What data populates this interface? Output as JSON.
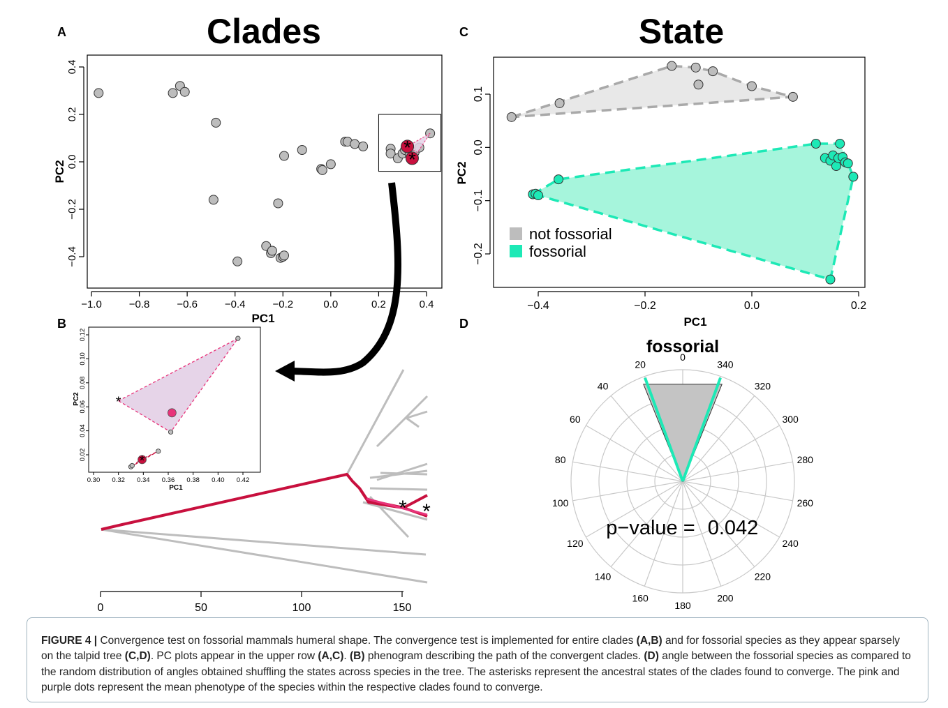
{
  "panelA": {
    "letter": "A",
    "title": "Clades",
    "xlabel": "PC1",
    "ylabel": "PC2",
    "xticks": [
      "−1.0",
      "−0.8",
      "−0.6",
      "−0.4",
      "−0.2",
      "0.0",
      "0.2",
      "0.4"
    ],
    "yticks": [
      "−0.4",
      "−0.2",
      "0.0",
      "0.2",
      "0.4"
    ]
  },
  "panelB": {
    "letter": "B",
    "xlabel": "PC1",
    "ylabel": "PC2",
    "xticks": [
      "0.30",
      "0.32",
      "0.34",
      "0.36",
      "0.38",
      "0.40",
      "0.42"
    ],
    "yticks": [
      "0.02",
      "0.04",
      "0.06",
      "0.08",
      "0.10",
      "0.12"
    ],
    "axis_ticks": [
      "0",
      "50",
      "100",
      "150"
    ]
  },
  "panelC": {
    "letter": "C",
    "title": "State",
    "xlabel": "PC1",
    "ylabel": "PC2",
    "xticks": [
      "−0.4",
      "−0.2",
      "0.0",
      "0.2"
    ],
    "yticks": [
      "−0.2",
      "−0.1",
      "0.0",
      "0.1"
    ],
    "legend": [
      {
        "label": "not fossorial",
        "color": "#bdbdbd"
      },
      {
        "label": "fossorial",
        "color": "#1de9b6"
      }
    ]
  },
  "panelD": {
    "letter": "D",
    "title": "fossorial",
    "angle_labels": [
      "0",
      "20",
      "40",
      "60",
      "80",
      "100",
      "120",
      "140",
      "160",
      "180",
      "200",
      "220",
      "240",
      "260",
      "280",
      "300",
      "320",
      "340"
    ],
    "pvalue_label": "p−value =",
    "pvalue": "0.042"
  },
  "caption": {
    "figure_label": "FIGURE 4 |",
    "t1": " Convergence test on fossorial mammals humeral shape. The convergence test is implemented for entire clades ",
    "b1": "(A,B)",
    "t2": " and for fossorial species as they appear sparsely on the talpid tree ",
    "b2": "(C,D)",
    "t3": ". PC plots appear in the upper row ",
    "b3": "(A,C)",
    "t4": ". ",
    "b4": "(B)",
    "t5": " phenogram describing the path of the convergent clades. ",
    "b5": "(D)",
    "t6": " angle between the fossorial species as compared to the random distribution of angles obtained shuffling the states across species in the tree. The asterisks represent the ancestral states of the clades found to converge. The pink and purple dots represent the mean phenotype of the species within the respective clades found to converge."
  },
  "colors": {
    "grey_point": "#bdbdbd",
    "fossorial": "#1de9b6",
    "fossorial_fill": "#a6f5dc",
    "clade_red": "#c8103e",
    "clade_pink": "#e8337a",
    "hull_purple": "#e6d4e8",
    "tree_grey": "#bdbdbd"
  },
  "chart_data": [
    {
      "type": "scatter",
      "panel": "A",
      "title": "Clades",
      "xlabel": "PC1",
      "ylabel": "PC2",
      "xlim": [
        -1.05,
        0.47
      ],
      "ylim": [
        -0.55,
        0.45
      ],
      "points": [
        {
          "x": -0.97,
          "y": 0.29
        },
        {
          "x": -0.66,
          "y": 0.29
        },
        {
          "x": -0.63,
          "y": 0.32
        },
        {
          "x": -0.61,
          "y": 0.295
        },
        {
          "x": -0.48,
          "y": 0.165
        },
        {
          "x": -0.49,
          "y": -0.16
        },
        {
          "x": -0.39,
          "y": -0.42
        },
        {
          "x": -0.27,
          "y": -0.355
        },
        {
          "x": -0.25,
          "y": -0.385
        },
        {
          "x": -0.245,
          "y": -0.375
        },
        {
          "x": -0.21,
          "y": -0.405
        },
        {
          "x": -0.2,
          "y": -0.4
        },
        {
          "x": -0.195,
          "y": -0.395
        },
        {
          "x": -0.22,
          "y": -0.175
        },
        {
          "x": -0.195,
          "y": 0.025
        },
        {
          "x": -0.12,
          "y": 0.05
        },
        {
          "x": -0.04,
          "y": -0.03
        },
        {
          "x": -0.035,
          "y": -0.035
        },
        {
          "x": 0.0,
          "y": -0.01
        },
        {
          "x": 0.06,
          "y": 0.085
        },
        {
          "x": 0.07,
          "y": 0.085
        },
        {
          "x": 0.1,
          "y": 0.075
        },
        {
          "x": 0.135,
          "y": 0.065
        },
        {
          "x": 0.25,
          "y": 0.055
        },
        {
          "x": 0.25,
          "y": 0.035
        },
        {
          "x": 0.28,
          "y": 0.015
        },
        {
          "x": 0.3,
          "y": 0.035
        },
        {
          "x": 0.31,
          "y": 0.05
        },
        {
          "x": 0.33,
          "y": 0.03
        },
        {
          "x": 0.35,
          "y": 0.04
        },
        {
          "x": 0.37,
          "y": 0.06
        },
        {
          "x": 0.415,
          "y": 0.12
        }
      ],
      "asterisks": [
        {
          "x": 0.32,
          "y": 0.065
        },
        {
          "x": 0.34,
          "y": 0.015
        }
      ],
      "inset_box": {
        "x0": 0.2,
        "x1": 0.46,
        "y0": -0.04,
        "y1": 0.2
      }
    },
    {
      "type": "scatter",
      "panel": "B-inset",
      "xlabel": "PC1",
      "ylabel": "PC2",
      "xlim": [
        0.3,
        0.43
      ],
      "ylim": [
        0.005,
        0.125
      ],
      "hull_purple": [
        {
          "x": 0.32,
          "y": 0.065
        },
        {
          "x": 0.416,
          "y": 0.117
        },
        {
          "x": 0.362,
          "y": 0.039
        }
      ],
      "hull_red": [
        {
          "x": 0.33,
          "y": 0.01
        },
        {
          "x": 0.352,
          "y": 0.023
        },
        {
          "x": 0.338,
          "y": 0.016
        }
      ],
      "mean_points": [
        {
          "x": 0.363,
          "y": 0.055,
          "color": "#e8337a"
        },
        {
          "x": 0.339,
          "y": 0.016,
          "color": "#c8103e"
        }
      ],
      "asterisks": [
        {
          "x": 0.32,
          "y": 0.065
        },
        {
          "x": 0.339,
          "y": 0.016
        }
      ]
    },
    {
      "type": "scatter",
      "panel": "C",
      "title": "State",
      "xlabel": "PC1",
      "ylabel": "PC2",
      "xlim": [
        -0.49,
        0.21
      ],
      "ylim": [
        -0.265,
        0.165
      ],
      "series": [
        {
          "name": "not fossorial",
          "points": [
            {
              "x": -0.45,
              "y": 0.057
            },
            {
              "x": -0.36,
              "y": 0.083
            },
            {
              "x": -0.15,
              "y": 0.153
            },
            {
              "x": -0.105,
              "y": 0.15
            },
            {
              "x": -0.1,
              "y": 0.118
            },
            {
              "x": -0.073,
              "y": 0.143
            },
            {
              "x": 0.0,
              "y": 0.115
            },
            {
              "x": 0.077,
              "y": 0.095
            }
          ]
        },
        {
          "name": "fossorial",
          "points": [
            {
              "x": -0.41,
              "y": -0.088
            },
            {
              "x": -0.405,
              "y": -0.087
            },
            {
              "x": -0.4,
              "y": -0.09
            },
            {
              "x": -0.362,
              "y": -0.06
            },
            {
              "x": 0.12,
              "y": 0.007
            },
            {
              "x": 0.137,
              "y": -0.02
            },
            {
              "x": 0.147,
              "y": -0.025
            },
            {
              "x": 0.152,
              "y": -0.015
            },
            {
              "x": 0.158,
              "y": -0.035
            },
            {
              "x": 0.162,
              "y": -0.02
            },
            {
              "x": 0.165,
              "y": 0.007
            },
            {
              "x": 0.17,
              "y": -0.018
            },
            {
              "x": 0.175,
              "y": -0.028
            },
            {
              "x": 0.18,
              "y": -0.03
            },
            {
              "x": 0.19,
              "y": -0.055
            },
            {
              "x": 0.147,
              "y": -0.248
            }
          ]
        }
      ]
    },
    {
      "type": "rose",
      "panel": "D",
      "title": "fossorial",
      "observed_angle_bounds_deg": [
        -20,
        20
      ],
      "random_distribution_bounds_deg": [
        -22,
        22
      ],
      "p_value": 0.042
    },
    {
      "type": "line",
      "panel": "B-phenogram",
      "x_ticks": [
        0,
        50,
        100,
        150
      ],
      "xlim": [
        0,
        163
      ]
    }
  ]
}
